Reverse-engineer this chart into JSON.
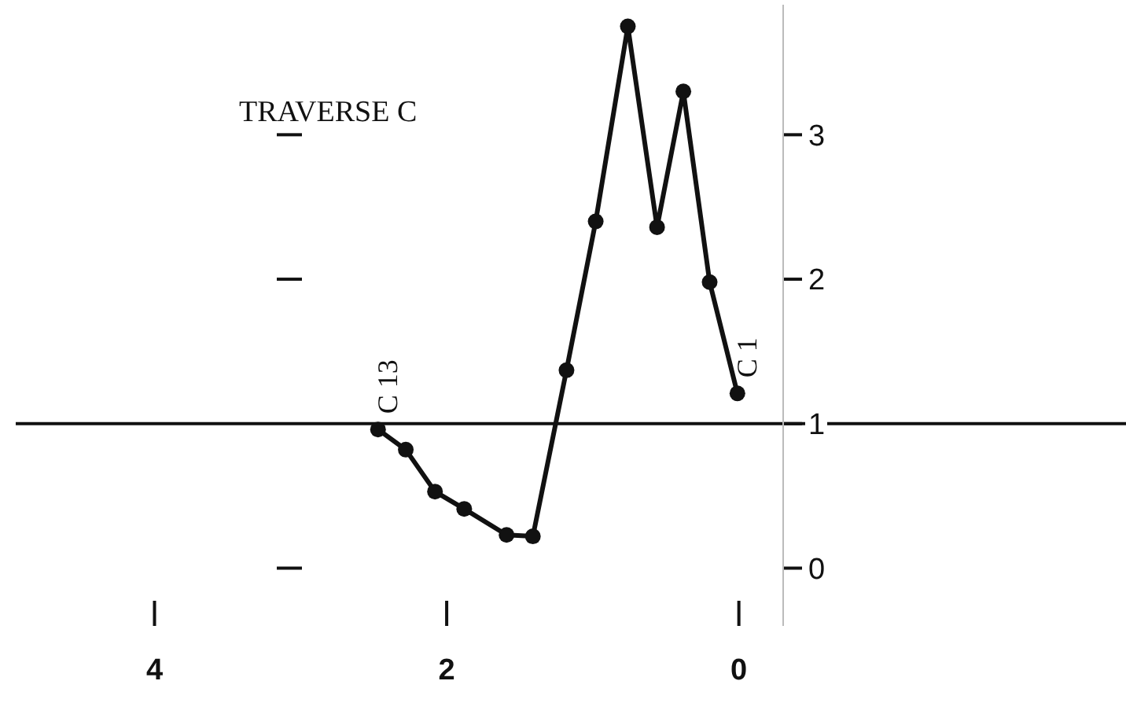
{
  "chart_data": {
    "type": "line",
    "title": "TRAVERSE C",
    "x": [
      2.47,
      2.28,
      2.08,
      1.88,
      1.59,
      1.41,
      1.18,
      0.98,
      0.76,
      0.56,
      0.38,
      0.2,
      0.01
    ],
    "series": [
      {
        "color": "#111111",
        "values": [
          0.96,
          0.82,
          0.53,
          0.41,
          0.23,
          0.22,
          1.37,
          2.4,
          3.75,
          2.36,
          3.3,
          1.98,
          1.21
        ]
      }
    ],
    "xlim": [
      4.95,
      -2.65
    ],
    "xticks": [
      4,
      2,
      0
    ],
    "ylim": [
      -0.4,
      3.9
    ],
    "yticks": [
      0,
      1,
      2,
      3
    ],
    "ref_lines": [
      {
        "axis": "y",
        "value": 1,
        "color": "#111111"
      }
    ],
    "annotations": [
      {
        "text": "C 13",
        "x": 2.47,
        "y": 0.96
      },
      {
        "text": "C 1",
        "x": 0.01,
        "y": 1.21
      }
    ],
    "marker": "circle",
    "line_style": "solid",
    "grid": false
  }
}
